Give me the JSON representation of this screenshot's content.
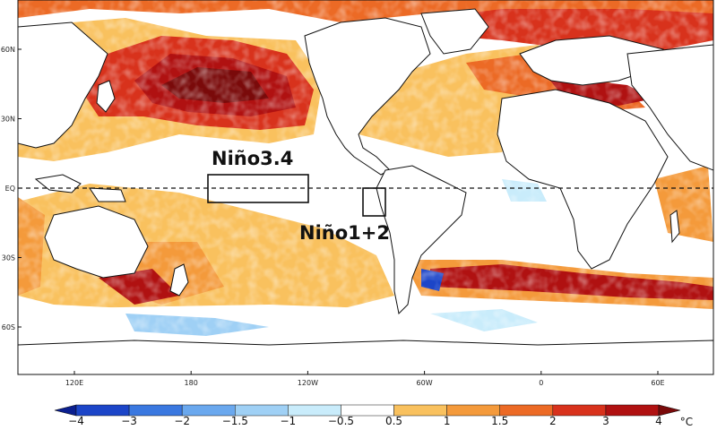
{
  "map": {
    "lat_ticks": [
      {
        "label": "60N",
        "lat": 60
      },
      {
        "label": "30N",
        "lat": 30
      },
      {
        "label": "EQ",
        "lat": 0
      },
      {
        "label": "30S",
        "lat": -30
      },
      {
        "label": "60S",
        "lat": -60
      }
    ],
    "lon_ticks": [
      {
        "label": "120E",
        "lon": 120
      },
      {
        "label": "180",
        "lon": 180
      },
      {
        "label": "120W",
        "lon": 240
      },
      {
        "label": "60W",
        "lon": 300
      },
      {
        "label": "0",
        "lon": 360
      },
      {
        "label": "60E",
        "lon": 420
      }
    ],
    "regions": [
      {
        "name": "Niño3.4",
        "lon_range": [
          190,
          240
        ],
        "lat_range": [
          -5,
          5
        ]
      },
      {
        "name": "Niño1+2",
        "lon_range": [
          270,
          280
        ],
        "lat_range": [
          -10,
          0
        ]
      }
    ],
    "equator_line": "dashed"
  },
  "colorbar": {
    "unit": "°C",
    "tick_labels": [
      "−4",
      "−3",
      "−2",
      "−1.5",
      "−1",
      "−0.5",
      "0.5",
      "1",
      "1.5",
      "2",
      "3",
      "4"
    ],
    "colors": [
      "#0b1f8f",
      "#1c45c8",
      "#3a78e0",
      "#6aa8ee",
      "#9fd0f5",
      "#c9ecfb",
      "#ffffff",
      "#f9c15e",
      "#f49a3b",
      "#ec6a25",
      "#d8321c",
      "#b01111",
      "#7a0a0a"
    ]
  }
}
